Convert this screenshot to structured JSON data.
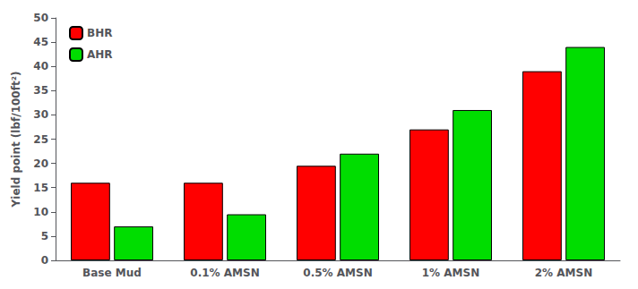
{
  "chart_data": {
    "type": "bar",
    "categories": [
      "Base Mud",
      "0.1% AMSN",
      "0.5% AMSN",
      "1% AMSN",
      "2% AMSN"
    ],
    "series": [
      {
        "name": "BHR",
        "color": "#ff0000",
        "values": [
          16,
          16,
          19.5,
          27,
          39
        ]
      },
      {
        "name": "AHR",
        "color": "#00dd00",
        "values": [
          7,
          9.5,
          22,
          31,
          44
        ]
      }
    ],
    "ylabel": "Yield point (lbf/100ft²)",
    "ylim": [
      0,
      50
    ],
    "yticks": [
      0,
      5,
      10,
      15,
      20,
      25,
      30,
      35,
      40,
      45,
      50
    ],
    "grid": false,
    "legend": "upper left"
  }
}
